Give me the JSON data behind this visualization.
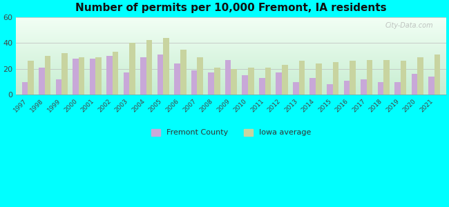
{
  "title": "Number of permits per 10,000 Fremont, IA residents",
  "years": [
    1997,
    1998,
    1999,
    2000,
    2001,
    2002,
    2003,
    2004,
    2005,
    2006,
    2007,
    2008,
    2009,
    2010,
    2011,
    2012,
    2013,
    2014,
    2015,
    2016,
    2017,
    2018,
    2019,
    2020,
    2021
  ],
  "fremont_county": [
    10,
    21,
    12,
    28,
    28,
    30,
    17,
    29,
    31,
    24,
    19,
    17,
    27,
    15,
    13,
    17,
    10,
    13,
    8,
    11,
    12,
    10,
    10,
    16,
    14
  ],
  "iowa_average": [
    26,
    30,
    32,
    29,
    29,
    33,
    40,
    42,
    44,
    35,
    29,
    21,
    20,
    21,
    21,
    23,
    26,
    24,
    25,
    26,
    27,
    27,
    26,
    29,
    31
  ],
  "fremont_color": "#c8a8d8",
  "iowa_color": "#c8d4a0",
  "outer_background": "#00ffff",
  "ylim": [
    0,
    60
  ],
  "yticks": [
    0,
    20,
    40,
    60
  ],
  "title_fontsize": 11,
  "legend_fremont": "Fremont County",
  "legend_iowa": "Iowa average",
  "bar_width": 0.35
}
